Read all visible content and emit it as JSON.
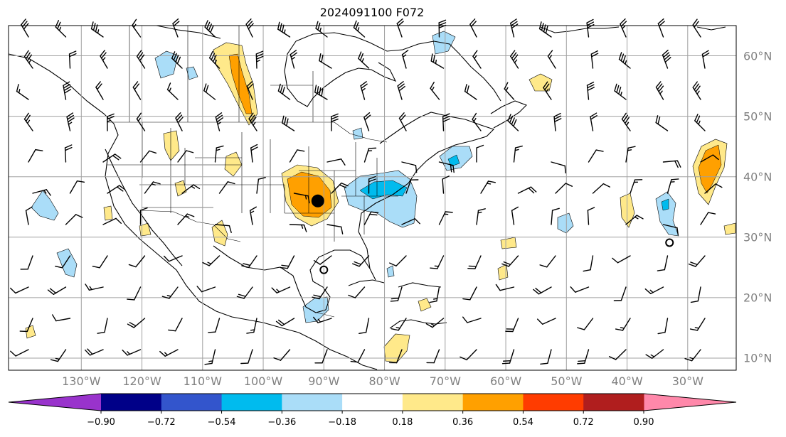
{
  "title": "2024091100 F072",
  "map": {
    "extent": {
      "lon": [
        -142,
        -22
      ],
      "lat": [
        8,
        65
      ]
    },
    "projection": "plate-carree",
    "grid": true,
    "grid_color": "#a0a0a0",
    "lon_ticks": [
      -130,
      -120,
      -110,
      -100,
      -90,
      -80,
      -70,
      -60,
      -50,
      -40,
      -30
    ],
    "lon_labels": [
      "130°W",
      "120°W",
      "110°W",
      "100°W",
      "90°W",
      "80°W",
      "70°W",
      "60°W",
      "50°W",
      "40°W",
      "30°W"
    ],
    "lat_ticks": [
      60,
      50,
      40,
      30,
      20,
      10
    ],
    "lat_labels": [
      "60°N",
      "50°N",
      "40°N",
      "30°N",
      "20°N",
      "10°N"
    ],
    "markers": [
      {
        "name": "filled-dot",
        "lon": -91.0,
        "lat": 36.0,
        "style": "filled"
      },
      {
        "name": "open-circle",
        "lon": -90.0,
        "lat": 24.6,
        "style": "open"
      },
      {
        "name": "open-circle",
        "lon": -33.0,
        "lat": 29.1,
        "style": "open"
      }
    ]
  },
  "colorbar": {
    "levels": [
      -0.9,
      -0.72,
      -0.54,
      -0.36,
      -0.18,
      0.18,
      0.36,
      0.54,
      0.72,
      0.9
    ],
    "labels": [
      "−0.90",
      "−0.72",
      "−0.54",
      "−0.36",
      "−0.18",
      "0.18",
      "0.36",
      "0.54",
      "0.72",
      "0.90"
    ],
    "colors": [
      "#9933cc",
      "#000088",
      "#3355cc",
      "#00bbee",
      "#aaddf8",
      "#ffffff",
      "#ffe98a",
      "#ffa000",
      "#ff3c00",
      "#b01e1e",
      "#ff88aa"
    ],
    "extend": "both"
  },
  "colors": {
    "land_outline": "#000000",
    "frame": "#000000",
    "tick_labels": "#808080"
  }
}
